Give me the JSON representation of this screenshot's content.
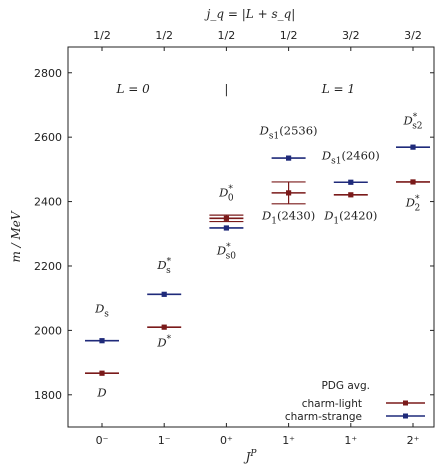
{
  "chart_data": {
    "type": "scatter",
    "xlabel": "J",
    "xlabel_sup": "P",
    "ylabel": "m / MeV",
    "top_axis_label": "j_q = |L + s_q|",
    "x_categories": [
      "0⁻",
      "1⁻",
      "0⁺",
      "1⁺",
      "1⁺",
      "2⁺"
    ],
    "top_categories": [
      "1/2",
      "1/2",
      "1/2",
      "1/2",
      "3/2",
      "3/2"
    ],
    "ylim": [
      1700,
      2880
    ],
    "yticks": [
      1800,
      2000,
      2200,
      2400,
      2600,
      2800
    ],
    "region_labels": [
      {
        "text": "L = 0",
        "after_category": 0.5
      },
      {
        "text": "|",
        "after_category": 2.0
      },
      {
        "text": "L = 1",
        "after_category": 3.8
      }
    ],
    "legend_title": "PDG avg.",
    "legend_position": "bottom-right",
    "colors": {
      "charm_light": "#7a1a1a",
      "charm_strange": "#1f2a7a",
      "axis": "#222222"
    },
    "series": [
      {
        "name": "charm-light",
        "points": [
          {
            "x": 0,
            "y": 1867,
            "err": 0
          },
          {
            "x": 1,
            "y": 2010,
            "err": 0
          },
          {
            "x": 2,
            "y": 2348,
            "err": 10
          },
          {
            "x": 3,
            "y": 2427,
            "err": 34
          },
          {
            "x": 4,
            "y": 2421,
            "err": 0
          },
          {
            "x": 5,
            "y": 2461,
            "err": 0
          }
        ]
      },
      {
        "name": "charm-strange",
        "points": [
          {
            "x": 0,
            "y": 1968,
            "err": 0
          },
          {
            "x": 1,
            "y": 2112,
            "err": 0
          },
          {
            "x": 2,
            "y": 2318,
            "err": 0
          },
          {
            "x": 3,
            "y": 2535,
            "err": 0
          },
          {
            "x": 4,
            "y": 2460,
            "err": 0
          },
          {
            "x": 5,
            "y": 2569,
            "err": 0
          }
        ]
      }
    ],
    "state_labels": [
      {
        "base": "D",
        "sup": "",
        "sub": "",
        "suffix": "",
        "x": 0,
        "y": 1795
      },
      {
        "base": "D",
        "sup": "",
        "sub": "s",
        "suffix": "",
        "x": 0,
        "y": 2055
      },
      {
        "base": "D",
        "sup": "*",
        "sub": "",
        "suffix": "",
        "x": 1,
        "y": 1950
      },
      {
        "base": "D",
        "sup": "*",
        "sub": "s",
        "suffix": "",
        "x": 1,
        "y": 2190
      },
      {
        "base": "D",
        "sup": "*",
        "sub": "0",
        "suffix": "",
        "x": 2,
        "y": 2415
      },
      {
        "base": "D",
        "sup": "*",
        "sub": "s0",
        "suffix": "",
        "x": 2,
        "y": 2235
      },
      {
        "base": "D",
        "sup": "",
        "sub": "s1",
        "suffix": "(2536)",
        "x": 3,
        "y": 2608
      },
      {
        "base": "D",
        "sup": "",
        "sub": "1",
        "suffix": "(2430)",
        "x": 3,
        "y": 2345
      },
      {
        "base": "D",
        "sup": "",
        "sub": "s1",
        "suffix": "(2460)",
        "x": 4,
        "y": 2530
      },
      {
        "base": "D",
        "sup": "",
        "sub": "1",
        "suffix": "(2420)",
        "x": 4,
        "y": 2345
      },
      {
        "base": "D",
        "sup": "*",
        "sub": "s2",
        "suffix": "",
        "x": 5,
        "y": 2640
      },
      {
        "base": "D",
        "sup": "*",
        "sub": "2",
        "suffix": "",
        "x": 5,
        "y": 2385
      }
    ]
  }
}
